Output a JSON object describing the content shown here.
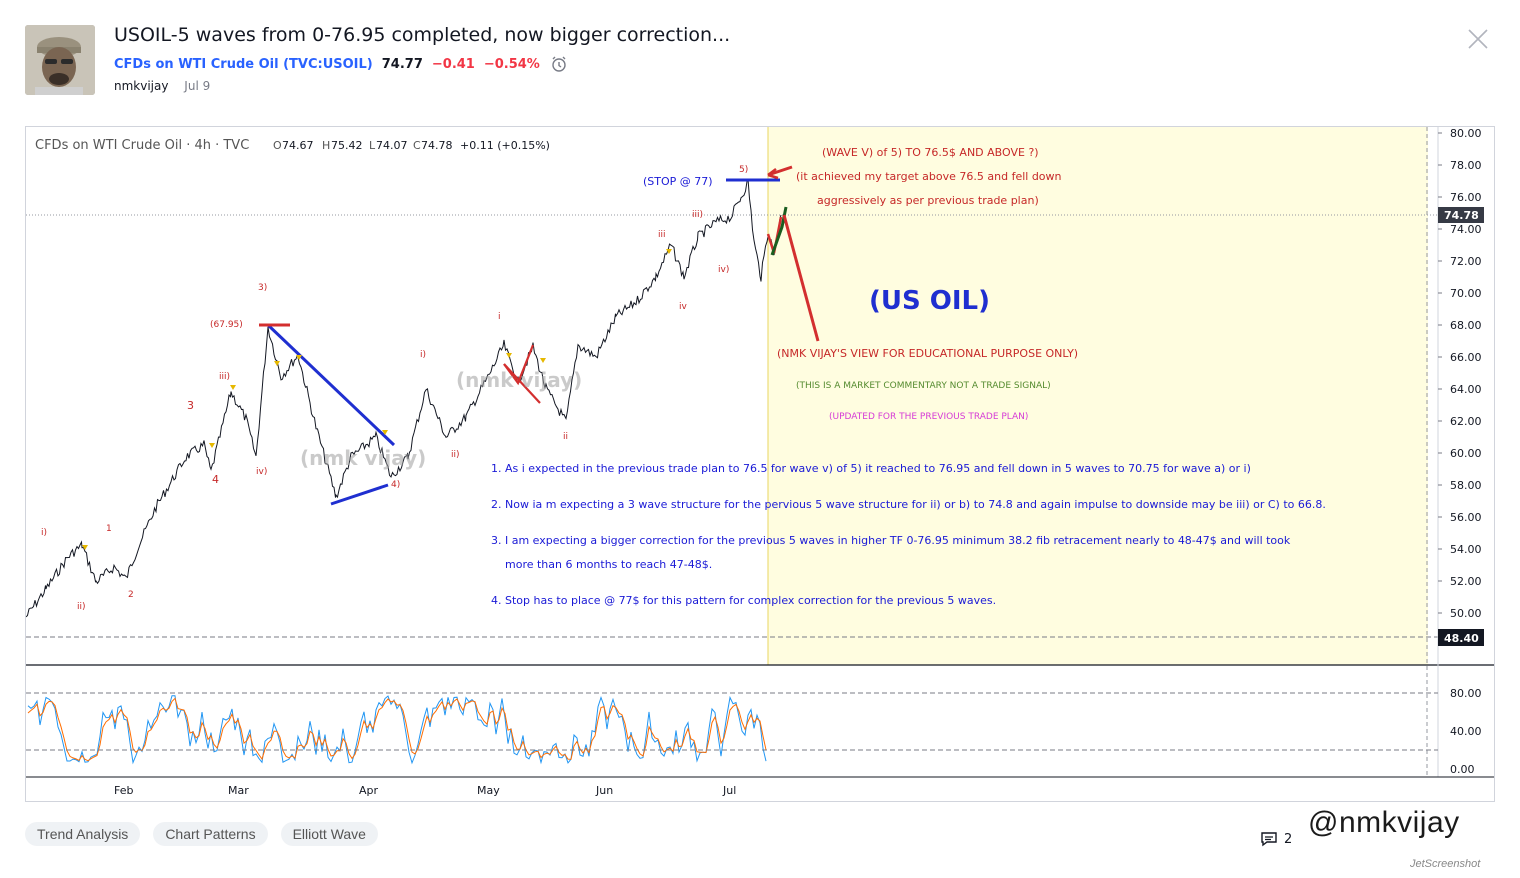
{
  "header": {
    "title": "USOIL-5 waves from 0-76.95 completed, now bigger correction...",
    "symbol_label": "CFDs on WTI Crude Oil (TVC:USOIL)",
    "price": "74.77",
    "change": "−0.41",
    "change_pct": "−0.54%",
    "author": "nmkvijay",
    "date": "Jul 9"
  },
  "chart": {
    "legend": {
      "name": "CFDs on WTI Crude Oil · 4h · TVC",
      "o_label": "O",
      "o": "74.67",
      "h_label": "H",
      "h": "75.42",
      "l_label": "L",
      "l": "74.07",
      "c_label": "C",
      "c": "74.78",
      "chg": "+0.11 (+0.15%)"
    },
    "price_axis": [
      "80.00",
      "78.00",
      "76.00",
      "74.00",
      "72.00",
      "70.00",
      "68.00",
      "66.00",
      "64.00",
      "62.00",
      "60.00",
      "58.00",
      "56.00",
      "54.00",
      "52.00",
      "50.00"
    ],
    "last_price_badge": "74.78",
    "level_badge": "48.40",
    "osc_axis": [
      "80.00",
      "40.00",
      "0.00"
    ],
    "time_axis": [
      "Feb",
      "Mar",
      "Apr",
      "May",
      "Jun",
      "Jul"
    ],
    "annotations": {
      "wave_v_title": "(WAVE V) of 5) TO 76.5$ AND ABOVE ?)",
      "achieved": "(it achieved my target above 76.5 and fell down",
      "aggressive": "aggressively as per previous trade plan)",
      "stop": "(STOP @ 77)",
      "us_oil": "(US OIL)",
      "view": "(NMK VIJAY'S VIEW FOR EDUCATIONAL PURPOSE ONLY)",
      "commentary": "(THIS IS A MARKET COMMENTARY NOT A TRADE SIGNAL)",
      "updated": "(UPDATED FOR THE PREVIOUS TRADE PLAN)",
      "level_6795": "(67.95)",
      "note1": "1. As i expected in the previous trade plan to 76.5 for wave v) of 5) it reached to 76.95 and fell down in 5 waves to 70.75 for wave a) or i)",
      "note2": "2. Now ia m expecting a 3 wave structure for the pervious 5 wave structure for ii) or b) to 74.8 and again impulse to downside may be iii) or C) to 66.8.",
      "note3a": "3. I am expecting a bigger correction for the previous 5 waves in higher TF 0-76.95 minimum 38.2 fib retracement nearly to 48-47$ and will took",
      "note3b": "more than 6 months to reach 47-48$.",
      "note4": "4. Stop has to place @ 77$ for this pattern for complex correction for the previous 5 waves.",
      "watermark_text": "(nmk vijay)"
    },
    "wave_labels": [
      "i)",
      "ii)",
      "1",
      "2",
      "3",
      "4",
      "iii)",
      "iv)",
      "3)",
      "4)",
      "i)",
      "ii)",
      "i",
      "ii",
      "iii",
      "iv",
      "iii)",
      "iv)",
      "5)"
    ]
  },
  "tags": [
    "Trend Analysis",
    "Chart Patterns",
    "Elliott Wave"
  ],
  "comments_count": "2",
  "overlay_watermark": "@nmkvijay",
  "overlay_watermark2": "JetScreenshot",
  "colors": {
    "blue": "#2962ff",
    "red": "#f23645",
    "annotation_red": "#c62828",
    "annotation_blue": "#1a1ad6",
    "highlight": "#fffde0"
  }
}
